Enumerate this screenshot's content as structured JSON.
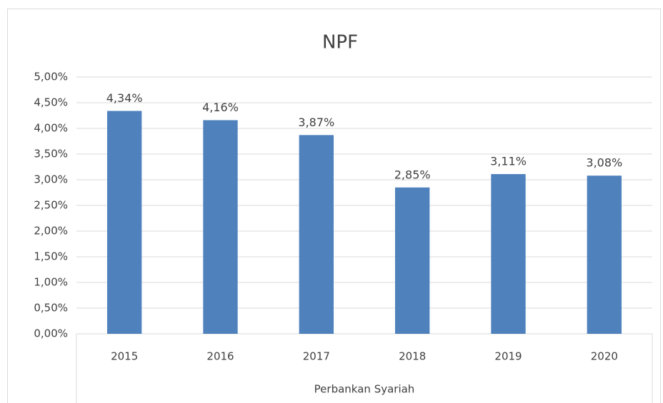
{
  "chart_data": {
    "type": "bar",
    "title": "NPF",
    "categories": [
      "2015",
      "2016",
      "2017",
      "2018",
      "2019",
      "2020"
    ],
    "values": [
      4.34,
      4.16,
      3.87,
      2.85,
      3.11,
      3.08
    ],
    "value_labels": [
      "4,34%",
      "4,16%",
      "3,87%",
      "2,85%",
      "3,11%",
      "3,08%"
    ],
    "color": "#4f81bd",
    "x_label": "Perbankan Syariah",
    "ylim": [
      0,
      5
    ],
    "yticks": [
      {
        "value": 0,
        "label": "0,00%"
      },
      {
        "value": 0.5,
        "label": "0,50%"
      },
      {
        "value": 1,
        "label": "1,00%"
      },
      {
        "value": 1.5,
        "label": "1,50%"
      },
      {
        "value": 2,
        "label": "2,00%"
      },
      {
        "value": 2.5,
        "label": "2,50%"
      },
      {
        "value": 3,
        "label": "3,00%"
      },
      {
        "value": 3.5,
        "label": "3,50%"
      },
      {
        "value": 4,
        "label": "4,00%"
      },
      {
        "value": 4.5,
        "label": "4,50%"
      },
      {
        "value": 5,
        "label": "5,00%"
      }
    ],
    "grid": true
  }
}
